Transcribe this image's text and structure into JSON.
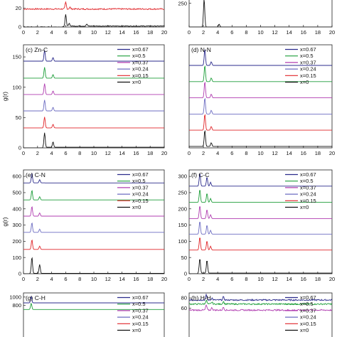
{
  "figure": {
    "y_axis_label": "g(r)",
    "legend_labels": [
      "x=0.67",
      "x=0.5",
      "x=0.37",
      "x=0.24",
      "x=0.15",
      "x=0"
    ],
    "series_colors": [
      "#2b2b8c",
      "#1e9e3a",
      "#b03db0",
      "#6d6dc2",
      "#e0262a",
      "#111111"
    ]
  },
  "chart_data": [
    {
      "type": "line",
      "title": "",
      "xlabel": "",
      "ylabel": "",
      "xlim": [
        0,
        20
      ],
      "ylim": [
        0,
        30
      ],
      "x_ticks": [
        "0",
        "2",
        "4",
        "6",
        "8",
        "10",
        "12",
        "14",
        "16",
        "18",
        "20"
      ],
      "y_ticks": [
        "0",
        "20"
      ],
      "legend": false,
      "series": [
        {
          "color": "#e0262a",
          "baseline": 19,
          "peaks": [
            [
              6,
              7
            ],
            [
              6.6,
              2
            ]
          ],
          "noise": 0.9
        },
        {
          "color": "#111111",
          "baseline": 1,
          "peaks": [
            [
              6,
              12
            ],
            [
              6.5,
              3
            ],
            [
              9,
              2
            ]
          ],
          "noise": 0.5
        }
      ]
    },
    {
      "type": "line",
      "title": "",
      "xlabel": "",
      "ylabel": "",
      "xlim": [
        0,
        20
      ],
      "ylim": [
        0,
        300
      ],
      "x_ticks": [
        "0",
        "2",
        "4",
        "6",
        "8",
        "10",
        "12",
        "14",
        "16",
        "18",
        "20"
      ],
      "y_ticks": [
        "250"
      ],
      "legend": false,
      "series": [
        {
          "color": "#111111",
          "baseline": 0,
          "peaks": [
            [
              2.1,
              300
            ],
            [
              4.2,
              30
            ]
          ],
          "noise": 0
        }
      ]
    },
    {
      "type": "line",
      "title": "(c) Zn-C",
      "xlabel": "",
      "ylabel": "g(r)",
      "xlim": [
        0,
        20
      ],
      "ylim": [
        0,
        170
      ],
      "x_ticks": [
        "0",
        "2",
        "4",
        "6",
        "8",
        "10",
        "12",
        "14",
        "16",
        "18",
        "20"
      ],
      "y_ticks": [
        "0",
        "50",
        "100",
        "150"
      ],
      "legend_labels": [
        "x=0.67",
        "x=0.5",
        "x=0.37",
        "x=0.24",
        "x=0.15",
        "x=0"
      ],
      "series": [
        {
          "name": "x=0.67",
          "color": "#2b2b8c",
          "baseline": 143,
          "peaks": [
            [
              3,
              18
            ],
            [
              4.2,
              6
            ]
          ],
          "noise": 0
        },
        {
          "name": "x=0.5",
          "color": "#1e9e3a",
          "baseline": 115,
          "peaks": [
            [
              3,
              18
            ],
            [
              4.2,
              6
            ]
          ],
          "noise": 0
        },
        {
          "name": "x=0.37",
          "color": "#b03db0",
          "baseline": 88,
          "peaks": [
            [
              3,
              18
            ],
            [
              4.2,
              6
            ]
          ],
          "noise": 0
        },
        {
          "name": "x=0.24",
          "color": "#6d6dc2",
          "baseline": 61,
          "peaks": [
            [
              3,
              18
            ],
            [
              4.2,
              6
            ]
          ],
          "noise": 0
        },
        {
          "name": "x=0.15",
          "color": "#e0262a",
          "baseline": 33,
          "peaks": [
            [
              3,
              18
            ],
            [
              4.2,
              6
            ]
          ],
          "noise": 0
        },
        {
          "name": "x=0",
          "color": "#111111",
          "baseline": 1,
          "peaks": [
            [
              3,
              24
            ],
            [
              4.2,
              9
            ]
          ],
          "noise": 0
        }
      ]
    },
    {
      "type": "line",
      "title": "(d) N-N",
      "xlabel": "",
      "ylabel": "",
      "xlim": [
        0,
        20
      ],
      "ylim": [
        0,
        700
      ],
      "x_ticks": [
        "0",
        "2",
        "4",
        "6",
        "8",
        "10",
        "12",
        "14",
        "16",
        "18",
        "20"
      ],
      "y_ticks": [],
      "legend_labels": [
        "x=0.67",
        "x=0.5",
        "x=0.37",
        "x=0.24",
        "x=0.15",
        "x=0"
      ],
      "series": [
        {
          "name": "x=0.67",
          "color": "#2b2b8c",
          "baseline": 560,
          "peaks": [
            [
              2.2,
              110
            ],
            [
              3.1,
              25
            ]
          ],
          "noise": 0
        },
        {
          "name": "x=0.5",
          "color": "#1e9e3a",
          "baseline": 450,
          "peaks": [
            [
              2.2,
              110
            ],
            [
              3.1,
              25
            ]
          ],
          "noise": 0
        },
        {
          "name": "x=0.37",
          "color": "#b03db0",
          "baseline": 340,
          "peaks": [
            [
              2.2,
              110
            ],
            [
              3.1,
              25
            ]
          ],
          "noise": 0
        },
        {
          "name": "x=0.24",
          "color": "#6d6dc2",
          "baseline": 230,
          "peaks": [
            [
              2.2,
              110
            ],
            [
              3.1,
              25
            ]
          ],
          "noise": 0
        },
        {
          "name": "x=0.15",
          "color": "#e0262a",
          "baseline": 120,
          "peaks": [
            [
              2.2,
              110
            ],
            [
              3.1,
              25
            ]
          ],
          "noise": 0
        },
        {
          "name": "x=0",
          "color": "#111111",
          "baseline": 10,
          "peaks": [
            [
              2.2,
              110
            ],
            [
              3.1,
              25
            ]
          ],
          "noise": 0
        }
      ]
    },
    {
      "type": "line",
      "title": "(e) C-N",
      "xlabel": "",
      "ylabel": "g(r)",
      "xlim": [
        0,
        20
      ],
      "ylim": [
        0,
        640
      ],
      "x_ticks": [
        "0",
        "2",
        "4",
        "6",
        "8",
        "10",
        "12",
        "14",
        "16",
        "18",
        "20"
      ],
      "y_ticks": [
        "0",
        "100",
        "200",
        "300",
        "400",
        "500",
        "600"
      ],
      "legend_labels": [
        "x=0.67",
        "x=0.5",
        "x=0.37",
        "x=0.24",
        "x=0.15",
        "x=0"
      ],
      "series": [
        {
          "name": "x=0.67",
          "color": "#2b2b8c",
          "baseline": 560,
          "peaks": [
            [
              1.2,
              60
            ],
            [
              2.3,
              20
            ]
          ],
          "noise": 0
        },
        {
          "name": "x=0.5",
          "color": "#1e9e3a",
          "baseline": 455,
          "peaks": [
            [
              1.2,
              60
            ],
            [
              2.3,
              20
            ]
          ],
          "noise": 0
        },
        {
          "name": "x=0.37",
          "color": "#b03db0",
          "baseline": 355,
          "peaks": [
            [
              1.2,
              60
            ],
            [
              2.3,
              20
            ]
          ],
          "noise": 0
        },
        {
          "name": "x=0.24",
          "color": "#6d6dc2",
          "baseline": 255,
          "peaks": [
            [
              1.2,
              60
            ],
            [
              2.3,
              20
            ]
          ],
          "noise": 0
        },
        {
          "name": "x=0.15",
          "color": "#e0262a",
          "baseline": 150,
          "peaks": [
            [
              1.2,
              60
            ],
            [
              2.3,
              20
            ]
          ],
          "noise": 0
        },
        {
          "name": "x=0",
          "color": "#111111",
          "baseline": 2,
          "peaks": [
            [
              1.2,
              100
            ],
            [
              2.3,
              55
            ]
          ],
          "noise": 0
        }
      ]
    },
    {
      "type": "line",
      "title": "(f) C-C",
      "xlabel": "",
      "ylabel": "",
      "xlim": [
        0,
        20
      ],
      "ylim": [
        0,
        320
      ],
      "x_ticks": [
        "0",
        "2",
        "4",
        "6",
        "8",
        "10",
        "12",
        "14",
        "16",
        "18",
        "20"
      ],
      "y_ticks": [
        "0",
        "50",
        "100",
        "150",
        "200",
        "250",
        "300"
      ],
      "legend_labels": [
        "x=0.67",
        "x=0.5",
        "x=0.37",
        "x=0.24",
        "x=0.15",
        "x=0"
      ],
      "series": [
        {
          "name": "x=0.67",
          "color": "#2b2b8c",
          "baseline": 270,
          "peaks": [
            [
              1.5,
              40
            ],
            [
              2.5,
              28
            ],
            [
              3.0,
              12
            ]
          ],
          "noise": 0
        },
        {
          "name": "x=0.5",
          "color": "#1e9e3a",
          "baseline": 220,
          "peaks": [
            [
              1.5,
              40
            ],
            [
              2.5,
              28
            ],
            [
              3.0,
              12
            ]
          ],
          "noise": 0
        },
        {
          "name": "x=0.37",
          "color": "#b03db0",
          "baseline": 170,
          "peaks": [
            [
              1.5,
              40
            ],
            [
              2.5,
              28
            ],
            [
              3.0,
              12
            ]
          ],
          "noise": 0
        },
        {
          "name": "x=0.24",
          "color": "#6d6dc2",
          "baseline": 122,
          "peaks": [
            [
              1.5,
              40
            ],
            [
              2.5,
              28
            ],
            [
              3.0,
              12
            ]
          ],
          "noise": 0
        },
        {
          "name": "x=0.15",
          "color": "#e0262a",
          "baseline": 73,
          "peaks": [
            [
              1.5,
              40
            ],
            [
              2.5,
              28
            ],
            [
              3.0,
              12
            ]
          ],
          "noise": 0
        },
        {
          "name": "x=0",
          "color": "#111111",
          "baseline": 2,
          "peaks": [
            [
              1.5,
              45
            ],
            [
              2.5,
              40
            ]
          ],
          "noise": 0
        }
      ]
    },
    {
      "type": "line",
      "title": "(g) C-H",
      "xlabel": "",
      "ylabel": "",
      "xlim": [
        0,
        20
      ],
      "ylim": [
        0,
        1100
      ],
      "x_ticks": [],
      "y_ticks": [
        "1000",
        "800"
      ],
      "legend_labels": [
        "x=0.67",
        "x=0.5",
        "x=0.37",
        "x=0.24",
        "x=0.15",
        "x=0"
      ],
      "series": [
        {
          "name": "x=0.67",
          "color": "#2b2b8c",
          "baseline": 860,
          "peaks": [
            [
              1.1,
              150
            ]
          ],
          "noise": 0
        },
        {
          "name": "x=0.5",
          "color": "#1e9e3a",
          "baseline": 700,
          "peaks": [
            [
              1.1,
              150
            ]
          ],
          "noise": 0
        }
      ]
    },
    {
      "type": "line",
      "title": "(h) H-H",
      "xlabel": "",
      "ylabel": "",
      "xlim": [
        0,
        20
      ],
      "ylim": [
        0,
        90
      ],
      "x_ticks": [],
      "y_ticks": [
        "80",
        "60"
      ],
      "legend_labels": [
        "x=0.67",
        "x=0.5",
        "x=0.37",
        "x=0.24",
        "x=0.15",
        "x=0"
      ],
      "series": [
        {
          "name": "x=0.67",
          "color": "#2b2b8c",
          "baseline": 76,
          "peaks": [
            [
              2.4,
              10
            ],
            [
              3.2,
              4
            ],
            [
              4.8,
              6
            ]
          ],
          "noise": 0.6
        },
        {
          "name": "x=0.5",
          "color": "#1e9e3a",
          "baseline": 68,
          "peaks": [
            [
              2.4,
              8
            ],
            [
              3.2,
              4
            ],
            [
              4.8,
              5
            ]
          ],
          "noise": 0.6
        },
        {
          "name": "x=0.37",
          "color": "#b03db0",
          "baseline": 56,
          "peaks": [
            [
              2.4,
              10
            ],
            [
              3.2,
              5
            ],
            [
              4.8,
              6
            ]
          ],
          "noise": 0.6
        }
      ]
    }
  ]
}
